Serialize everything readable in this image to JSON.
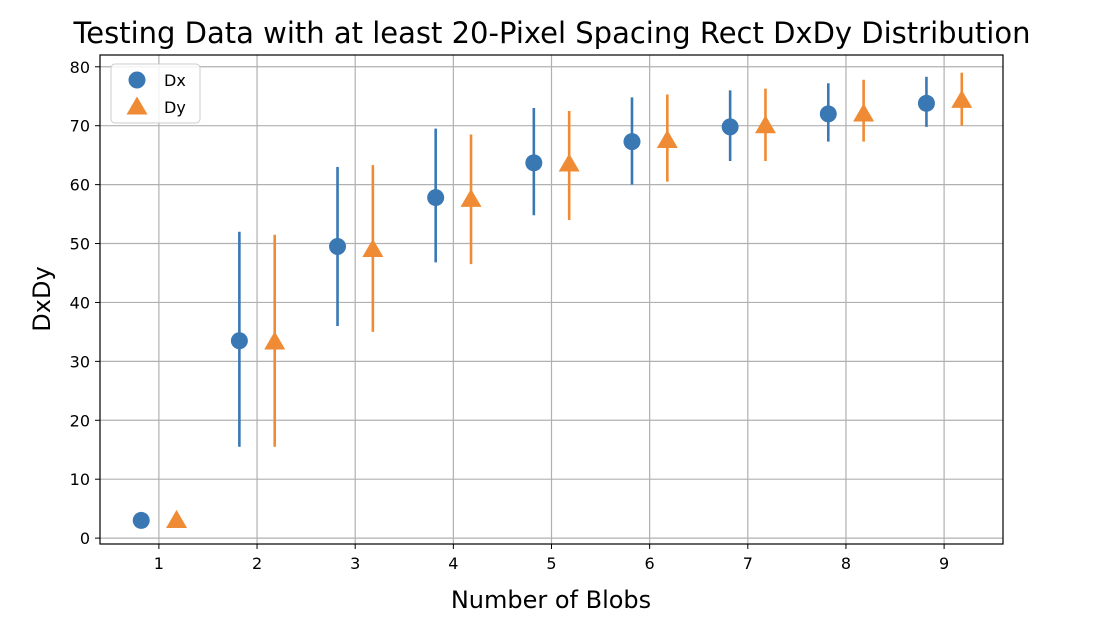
{
  "chart_data": {
    "type": "scatter",
    "title": "Testing Data with at least 20-Pixel Spacing Rect DxDy Distribution",
    "xlabel": "Number of Blobs",
    "ylabel": "DxDy",
    "xlim": [
      0.4,
      9.6
    ],
    "ylim": [
      -1,
      82
    ],
    "xticks": [
      1,
      2,
      3,
      4,
      5,
      6,
      7,
      8,
      9
    ],
    "yticks": [
      0,
      10,
      20,
      30,
      40,
      50,
      60,
      70,
      80
    ],
    "grid": true,
    "legend_position": "top-left",
    "series": [
      {
        "name": "Dx",
        "marker": "circle",
        "color": "#3a78b4",
        "x": [
          0.82,
          1.82,
          2.82,
          3.82,
          4.82,
          5.82,
          6.82,
          7.82,
          8.82
        ],
        "y": [
          3,
          33.5,
          49.5,
          57.8,
          63.7,
          67.3,
          69.8,
          72,
          73.8
        ],
        "error_low": [
          3,
          15.5,
          36,
          46.8,
          54.8,
          60,
          64,
          67.3,
          69.8
        ],
        "error_high": [
          3,
          52,
          63,
          69.5,
          73,
          74.8,
          76,
          77.2,
          78.3
        ]
      },
      {
        "name": "Dy",
        "marker": "triangle",
        "color": "#f08b35",
        "x": [
          1.18,
          2.18,
          3.18,
          4.18,
          5.18,
          6.18,
          7.18,
          8.18,
          9.18
        ],
        "y": [
          3,
          33.3,
          49,
          57.5,
          63.5,
          67.5,
          70,
          72,
          74.3
        ],
        "error_low": [
          3,
          15.5,
          35,
          46.5,
          54,
          60.5,
          64,
          67.3,
          70
        ],
        "error_high": [
          3,
          51.5,
          63.3,
          68.5,
          72.5,
          75.3,
          76.3,
          77.8,
          79
        ]
      }
    ]
  }
}
